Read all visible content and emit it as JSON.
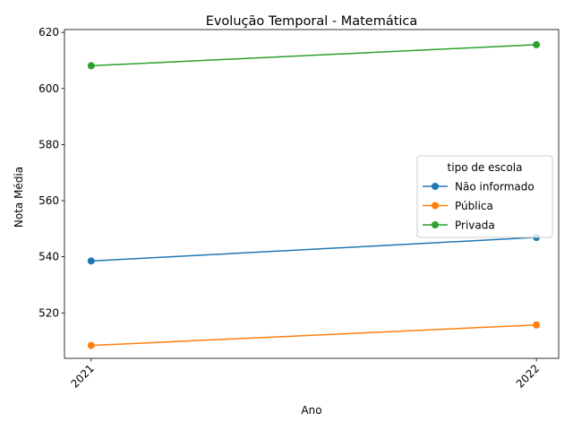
{
  "chart_data": {
    "type": "line",
    "title": "Evolução Temporal - Matemática",
    "xlabel": "Ano",
    "ylabel": "Nota Média",
    "x": [
      "2021",
      "2022"
    ],
    "xlim": [
      2020.94,
      2022.05
    ],
    "ylim": [
      503.8,
      621.0
    ],
    "yticks": [
      520,
      540,
      560,
      580,
      600,
      620
    ],
    "grid": false,
    "legend": {
      "title": "tipo de escola",
      "placement": "center-right"
    },
    "series": [
      {
        "name": "Não informado",
        "color": "#1f77b4",
        "values": [
          538.5,
          546.9
        ]
      },
      {
        "name": "Pública",
        "color": "#ff7f0e",
        "values": [
          508.4,
          515.7
        ]
      },
      {
        "name": "Privada",
        "color": "#2ca02c",
        "values": [
          608.1,
          615.6
        ]
      }
    ]
  }
}
